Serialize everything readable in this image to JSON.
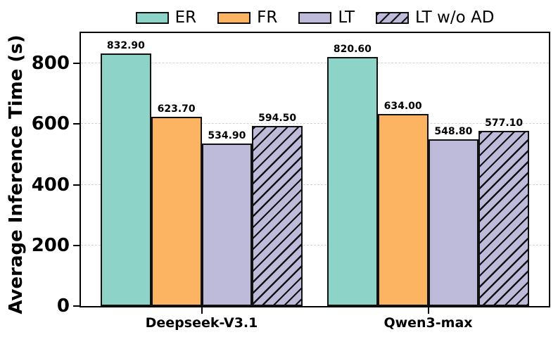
{
  "chart_data": {
    "type": "bar",
    "title": "",
    "xlabel": "",
    "ylabel": "Average Inference Time (s)",
    "categories": [
      "Deepseek-V3.1",
      "Qwen3-max"
    ],
    "series": [
      {
        "name": "ER",
        "color": "#8dd3c7",
        "hatch": false,
        "values": [
          832.9,
          820.6
        ],
        "labels": [
          "832.90",
          "820.60"
        ]
      },
      {
        "name": "FR",
        "color": "#fdb462",
        "hatch": false,
        "values": [
          623.7,
          634.0
        ],
        "labels": [
          "623.70",
          "634.00"
        ]
      },
      {
        "name": "LT",
        "color": "#bebada",
        "hatch": false,
        "values": [
          534.9,
          548.8
        ],
        "labels": [
          "534.90",
          "548.80"
        ]
      },
      {
        "name": "LT w/o AD",
        "color": "#bebada",
        "hatch": true,
        "values": [
          594.5,
          577.1
        ],
        "labels": [
          "594.50",
          "577.10"
        ]
      }
    ],
    "yticks": [
      0,
      200,
      400,
      600,
      800
    ],
    "ylim": [
      0,
      900
    ],
    "grid": {
      "axis": "y",
      "style": "dashed",
      "color": "#d2d2d2"
    },
    "legend": {
      "position": "top-center",
      "entries": [
        "ER",
        "FR",
        "LT",
        "LT w/o AD"
      ]
    },
    "bar_edge_color": "#111111",
    "hatch_pattern": "/"
  }
}
